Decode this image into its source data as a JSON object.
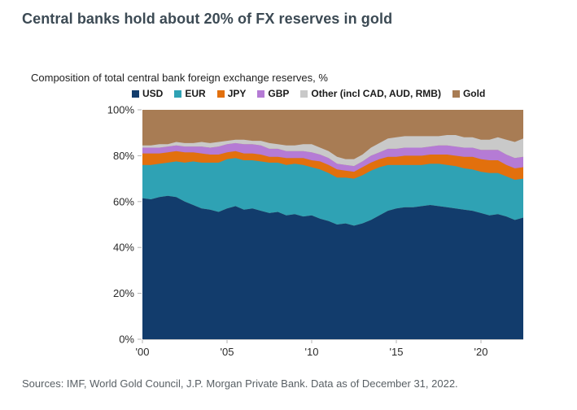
{
  "header": {
    "title": "Central banks hold about 20% of FX reserves in gold"
  },
  "chart": {
    "subtitle": "Composition of total central bank foreign exchange reserves, %",
    "source_note": "Sources: IMF, World Gold Council, J.P. Morgan Private Bank. Data as of December 31, 2022."
  },
  "colors": {
    "title_text": "#3c4a54",
    "axis_text": "#2a2a2a",
    "tick_line": "#b3b3b3",
    "axis_line": "#c8c8c8",
    "source_text": "#585f64"
  },
  "chart_data": {
    "type": "area",
    "stacked": true,
    "grid": false,
    "legend_position": "top",
    "title": "Composition of total central bank foreign exchange reserves, %",
    "xlabel": "",
    "ylabel": "",
    "ylim": [
      0,
      100
    ],
    "x_range": [
      2000,
      2022.5
    ],
    "y_ticks": [
      {
        "value": 0,
        "label": "0%"
      },
      {
        "value": 20,
        "label": "20%"
      },
      {
        "value": 40,
        "label": "40%"
      },
      {
        "value": 60,
        "label": "60%"
      },
      {
        "value": 80,
        "label": "80%"
      },
      {
        "value": 100,
        "label": "100%"
      }
    ],
    "x_ticks": [
      {
        "value": 2000,
        "label": "'00"
      },
      {
        "value": 2005,
        "label": "'05"
      },
      {
        "value": 2010,
        "label": "'10"
      },
      {
        "value": 2015,
        "label": "'15"
      },
      {
        "value": 2020,
        "label": "'20"
      }
    ],
    "x_years": [
      2000,
      2000.5,
      2001,
      2001.5,
      2002,
      2002.5,
      2003,
      2003.5,
      2004,
      2004.5,
      2005,
      2005.5,
      2006,
      2006.5,
      2007,
      2007.5,
      2008,
      2008.5,
      2009,
      2009.5,
      2010,
      2010.5,
      2011,
      2011.5,
      2012,
      2012.5,
      2013,
      2013.5,
      2014,
      2014.5,
      2015,
      2015.5,
      2016,
      2016.5,
      2017,
      2017.5,
      2018,
      2018.5,
      2019,
      2019.5,
      2020,
      2020.5,
      2021,
      2021.5,
      2022,
      2022.5
    ],
    "series": [
      {
        "name": "USD",
        "color": "#123c6c",
        "values": [
          61.5,
          61,
          62,
          62.5,
          62,
          60,
          58.5,
          57,
          56.5,
          55.5,
          57,
          58,
          56.5,
          57,
          56,
          55,
          55.5,
          54,
          54.5,
          53.5,
          54,
          52.5,
          51.5,
          50,
          50.5,
          49.5,
          50.5,
          52,
          54,
          56,
          57,
          57.5,
          57.5,
          58,
          58.5,
          58,
          57.5,
          57,
          56.5,
          56,
          55,
          54,
          54.5,
          53.5,
          52,
          53
        ]
      },
      {
        "name": "EUR",
        "color": "#2fa2b4",
        "values": [
          14.5,
          15,
          14.5,
          14.5,
          15.5,
          17,
          19,
          20,
          20.5,
          21.5,
          21.5,
          21,
          21.5,
          21,
          21.5,
          22,
          21.5,
          22,
          22,
          22.5,
          21,
          21.5,
          21,
          20.5,
          20,
          20.5,
          21,
          21.5,
          21,
          20,
          19,
          18.5,
          18.5,
          18,
          18,
          18.5,
          18.5,
          18.5,
          18,
          18,
          18,
          18.5,
          18,
          17.5,
          17.5,
          17
        ]
      },
      {
        "name": "JPY",
        "color": "#e2700d",
        "values": [
          5,
          5,
          4.5,
          4.5,
          4.5,
          4.5,
          4,
          4,
          3.5,
          3.5,
          3,
          3,
          3,
          3,
          3,
          2.5,
          2.5,
          3,
          2.5,
          3,
          3,
          3.5,
          3.5,
          3.5,
          3,
          3,
          3.5,
          3.5,
          3.5,
          3.5,
          3.5,
          4,
          4,
          4,
          4,
          4,
          4.5,
          4.5,
          5,
          5.5,
          5.5,
          5.5,
          5.5,
          5,
          5,
          5
        ]
      },
      {
        "name": "GBP",
        "color": "#b57bd5",
        "values": [
          2.5,
          2.5,
          2.5,
          2.5,
          2.5,
          2.5,
          2.5,
          3,
          3,
          3.5,
          3.5,
          3.5,
          4,
          4,
          4,
          3.5,
          3.5,
          3,
          3,
          3,
          3.5,
          3,
          3,
          2.5,
          2.5,
          2.5,
          2.5,
          3,
          3,
          3.5,
          3.5,
          3.5,
          3.5,
          3.5,
          3.5,
          4,
          4,
          4,
          4,
          4,
          4,
          4.5,
          4.5,
          4.5,
          4.5,
          4.5
        ]
      },
      {
        "name": "Other (incl CAD, AUD, RMB)",
        "color": "#c9c9c9",
        "values": [
          1,
          1,
          1.5,
          1,
          1.5,
          1.5,
          1.5,
          2,
          2,
          2,
          1.5,
          1.5,
          2,
          1.5,
          2,
          2.5,
          2,
          2.5,
          2.5,
          3,
          3.5,
          3,
          3,
          3,
          2.5,
          3,
          3,
          3.5,
          4,
          4.5,
          5,
          5,
          5,
          5,
          4.5,
          4,
          4.5,
          5,
          4.5,
          4.5,
          4.5,
          4.5,
          5.5,
          6.5,
          7,
          8
        ]
      },
      {
        "name": "Gold",
        "color": "#a87c54",
        "values": [
          15.5,
          15.5,
          15,
          15,
          14,
          14.5,
          14.5,
          14,
          14.5,
          14,
          13.5,
          13,
          13,
          13.5,
          13.5,
          14.5,
          15,
          15.5,
          15.5,
          15,
          15,
          16.5,
          18,
          20.5,
          21.5,
          21.5,
          19.5,
          16.5,
          14.5,
          12.5,
          12,
          11.5,
          11.5,
          11.5,
          11.5,
          11.5,
          11,
          11,
          12,
          12,
          13,
          13,
          12,
          13,
          14,
          12.5
        ]
      }
    ]
  }
}
